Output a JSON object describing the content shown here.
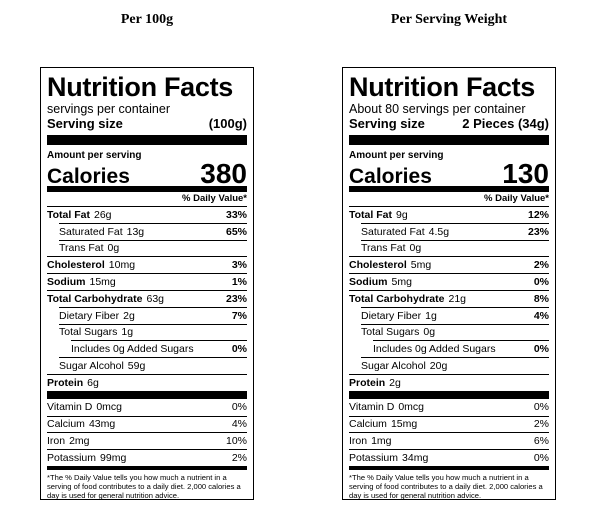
{
  "labels": [
    {
      "heading": "Per 100g",
      "title": "Nutrition Facts",
      "servings": "servings per container",
      "serving_size_label": "Serving size",
      "serving_size": "(100g)",
      "amount_per_serving": "Amount per serving",
      "calories_label": "Calories",
      "calories": 380,
      "dv_header": "% Daily Value*",
      "nutrients": [
        {
          "name": "Total Fat",
          "amount": "26g",
          "dv": "33%",
          "bold": true,
          "indent": 0
        },
        {
          "name": "Saturated Fat",
          "amount": "13g",
          "dv": "65%",
          "bold": false,
          "indent": 1
        },
        {
          "name": "Trans Fat",
          "amount": "0g",
          "bold": false,
          "indent": 1
        },
        {
          "name": "Cholesterol",
          "amount": "10mg",
          "dv": "3%",
          "bold": true,
          "indent": 0
        },
        {
          "name": "Sodium",
          "amount": "15mg",
          "dv": "1%",
          "bold": true,
          "indent": 0
        },
        {
          "name": "Total Carbohydrate",
          "amount": "63g",
          "dv": "23%",
          "bold": true,
          "indent": 0
        },
        {
          "name": "Dietary Fiber",
          "amount": "2g",
          "dv": "7%",
          "bold": false,
          "indent": 1
        },
        {
          "name": "Total Sugars",
          "amount": "1g",
          "bold": false,
          "indent": 1
        },
        {
          "name": "Includes 0g Added Sugars",
          "dv": "0%",
          "bold": false,
          "indent": 2
        },
        {
          "name": "Sugar Alcohol",
          "amount": "59g",
          "bold": false,
          "indent": 1
        },
        {
          "name": "Protein",
          "amount": "6g",
          "bold": true,
          "indent": 0
        }
      ],
      "vitamins": [
        {
          "name": "Vitamin D",
          "amount": "0mcg",
          "dv": "0%"
        },
        {
          "name": "Calcium",
          "amount": "43mg",
          "dv": "4%"
        },
        {
          "name": "Iron",
          "amount": "2mg",
          "dv": "10%"
        },
        {
          "name": "Potassium",
          "amount": "99mg",
          "dv": "2%"
        }
      ],
      "footnote": "*The % Daily Value tells you how much a nutrient in a serving of food contributes to a daily diet. 2,000 calories a day is used for general nutrition advice."
    },
    {
      "heading": "Per Serving Weight",
      "title": "Nutrition Facts",
      "servings": "About 80 servings per container",
      "serving_size_label": "Serving size",
      "serving_size": "2 Pieces (34g)",
      "amount_per_serving": "Amount per serving",
      "calories_label": "Calories",
      "calories": 130,
      "dv_header": "% Daily Value*",
      "nutrients": [
        {
          "name": "Total Fat",
          "amount": "9g",
          "dv": "12%",
          "bold": true,
          "indent": 0
        },
        {
          "name": "Saturated Fat",
          "amount": "4.5g",
          "dv": "23%",
          "bold": false,
          "indent": 1
        },
        {
          "name": "Trans Fat",
          "amount": "0g",
          "bold": false,
          "indent": 1
        },
        {
          "name": "Cholesterol",
          "amount": "5mg",
          "dv": "2%",
          "bold": true,
          "indent": 0
        },
        {
          "name": "Sodium",
          "amount": "5mg",
          "dv": "0%",
          "bold": true,
          "indent": 0
        },
        {
          "name": "Total Carbohydrate",
          "amount": "21g",
          "dv": "8%",
          "bold": true,
          "indent": 0
        },
        {
          "name": "Dietary Fiber",
          "amount": "1g",
          "dv": "4%",
          "bold": false,
          "indent": 1
        },
        {
          "name": "Total Sugars",
          "amount": "0g",
          "bold": false,
          "indent": 1
        },
        {
          "name": "Includes 0g Added Sugars",
          "dv": "0%",
          "bold": false,
          "indent": 2
        },
        {
          "name": "Sugar Alcohol",
          "amount": "20g",
          "bold": false,
          "indent": 1
        },
        {
          "name": "Protein",
          "amount": "2g",
          "bold": true,
          "indent": 0
        }
      ],
      "vitamins": [
        {
          "name": "Vitamin D",
          "amount": "0mcg",
          "dv": "0%"
        },
        {
          "name": "Calcium",
          "amount": "15mg",
          "dv": "2%"
        },
        {
          "name": "Iron",
          "amount": "1mg",
          "dv": "6%"
        },
        {
          "name": "Potassium",
          "amount": "34mg",
          "dv": "0%"
        }
      ],
      "footnote": "*The % Daily Value tells you how much a nutrient in a serving of food contributes to a daily diet. 2,000 calories a day is used for general nutrition advice."
    }
  ]
}
